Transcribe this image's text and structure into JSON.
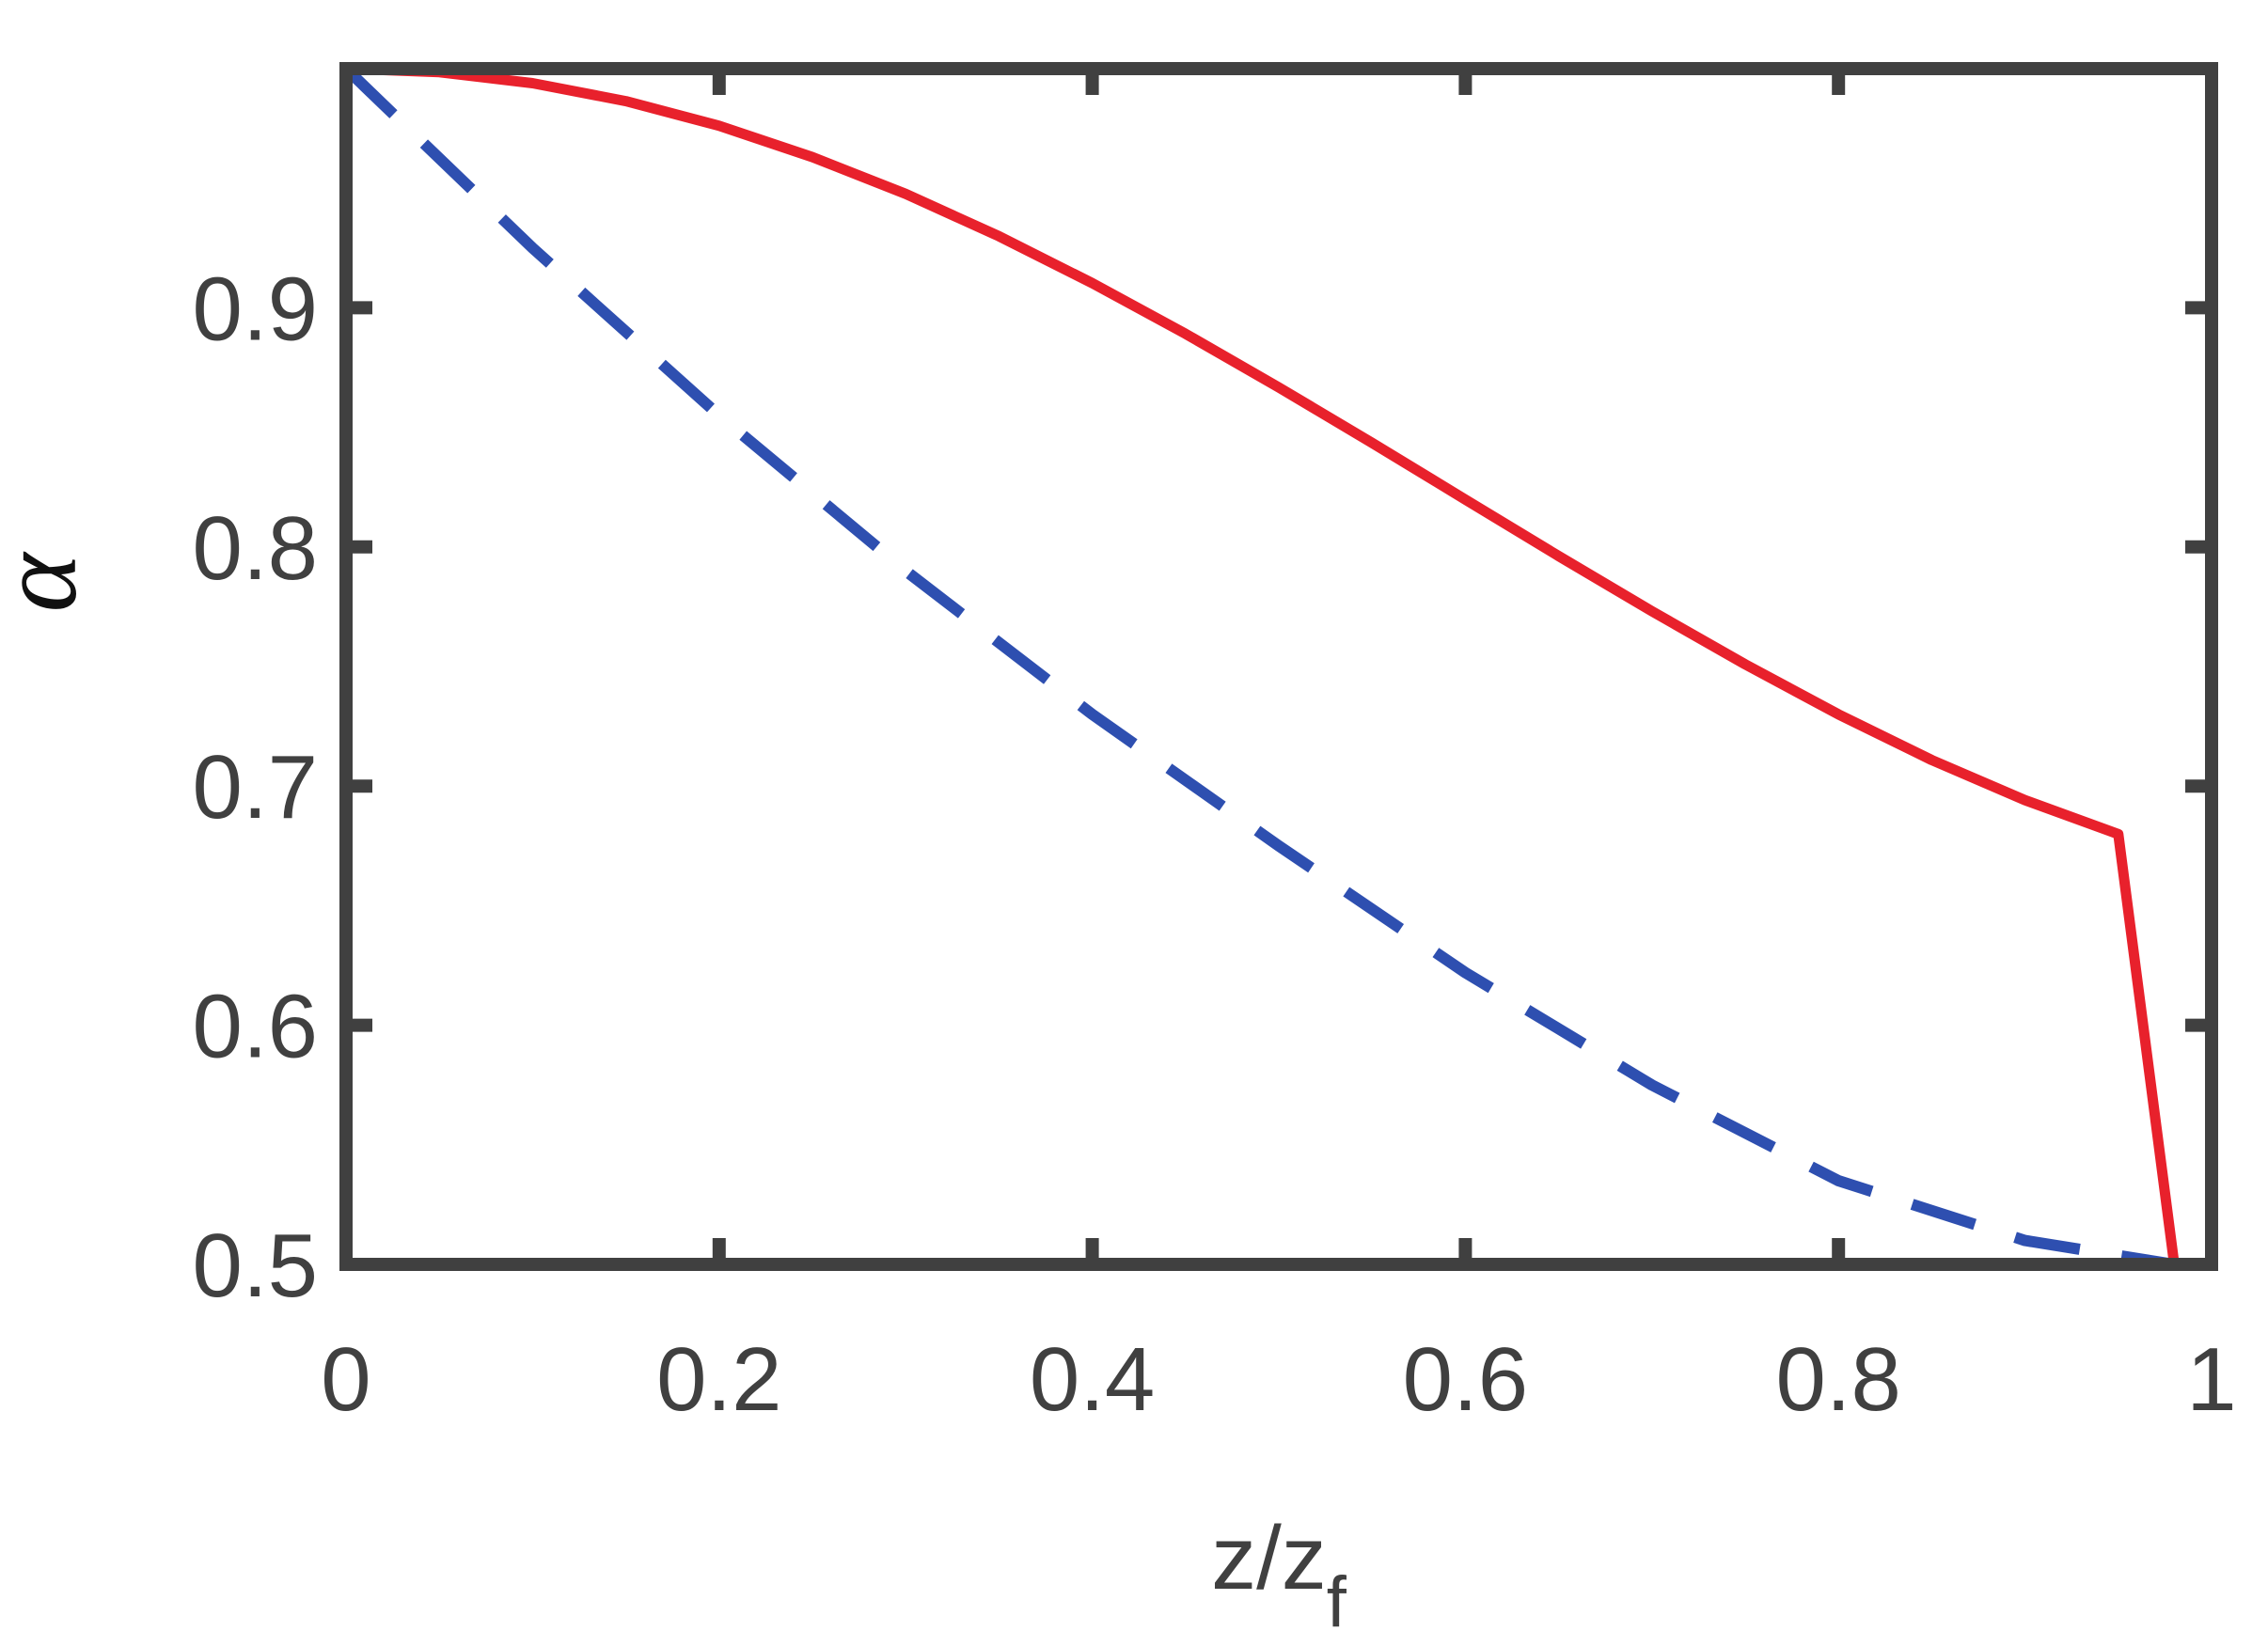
{
  "chart_data": {
    "type": "line",
    "xlabel": "z/z",
    "xlabel_sub": "f",
    "ylabel": "α",
    "xlim": [
      0,
      1
    ],
    "ylim": [
      0.5,
      1.0
    ],
    "xticks": [
      0,
      0.2,
      0.4,
      0.6,
      0.8,
      1
    ],
    "xtick_labels": [
      "0",
      "0.2",
      "0.4",
      "0.6",
      "0.8",
      "1"
    ],
    "yticks": [
      0.5,
      0.6,
      0.7,
      0.8,
      0.9
    ],
    "ytick_labels": [
      "0.5",
      "0.6",
      "0.7",
      "0.8",
      "0.9"
    ],
    "grid": false,
    "series": [
      {
        "style": "solid",
        "color": "#e8212c",
        "x": [
          0,
          0.05,
          0.1,
          0.15,
          0.2,
          0.25,
          0.3,
          0.35,
          0.4,
          0.45,
          0.5,
          0.55,
          0.6,
          0.65,
          0.7,
          0.75,
          0.8,
          0.85,
          0.9,
          0.95,
          0.98
        ],
        "y": [
          1.0,
          0.9985,
          0.9939,
          0.9864,
          0.9761,
          0.963,
          0.9476,
          0.9299,
          0.9103,
          0.8891,
          0.8667,
          0.8435,
          0.8198,
          0.7962,
          0.7731,
          0.7509,
          0.73,
          0.7109,
          0.6941,
          0.6799,
          0.5
        ]
      },
      {
        "style": "dashed",
        "color": "#2e4fb0",
        "x": [
          0,
          0.1,
          0.2,
          0.3,
          0.4,
          0.5,
          0.6,
          0.7,
          0.8,
          0.9,
          0.98
        ],
        "y": [
          1.0,
          0.925,
          0.855,
          0.79,
          0.73,
          0.675,
          0.622,
          0.575,
          0.535,
          0.51,
          0.5
        ]
      }
    ]
  }
}
